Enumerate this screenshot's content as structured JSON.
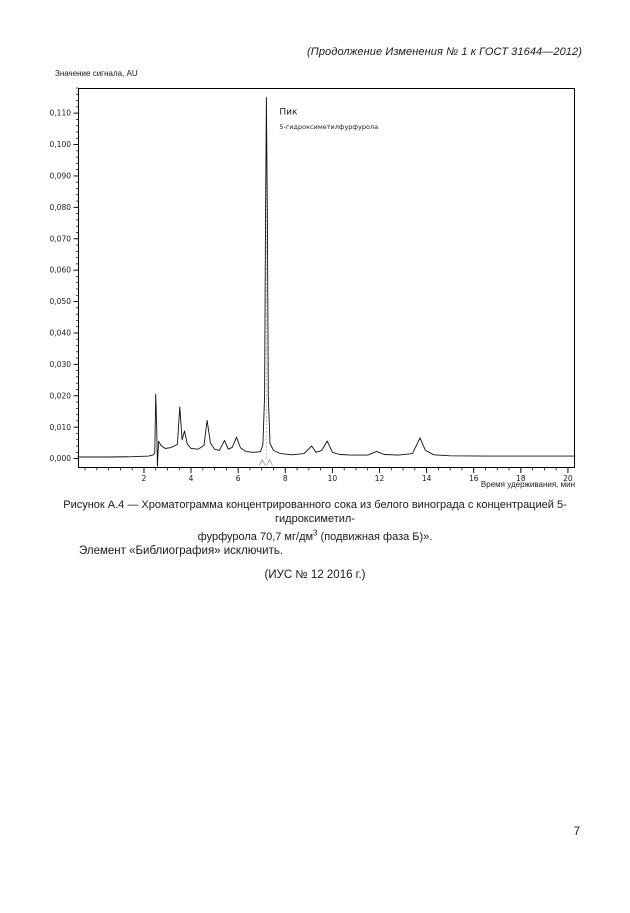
{
  "page": {
    "header": "(Продолжение Изменения № 1 к ГОСТ 31644—2012)",
    "caption_line1": "Рисунок А.4 — Хроматограмма концентрированного сока из белого винограда с концентрацией 5-гидроксиметил-",
    "caption_line2_pre": "фурфурола 70,7 мг/дм",
    "caption_sup": "3",
    "caption_line2_post": " (подвижная фаза Б)».",
    "paragraph": "Элемент «Библиография» исключить.",
    "ius_note": "(ИУС № 12  2016 г.)",
    "page_number": "7"
  },
  "chart_data": {
    "type": "line",
    "title": "",
    "ylabel": "Значение сигнала, AU",
    "xlabel": "Время удерживания, мин",
    "xlim": [
      -0.8,
      20.3
    ],
    "ylim": [
      -0.003,
      0.118
    ],
    "x_ticks": [
      2,
      4,
      6,
      8,
      10,
      12,
      14,
      16,
      18,
      20
    ],
    "x_tick_labels": [
      "2",
      "4",
      "6",
      "8",
      "10",
      "12",
      "14",
      "16",
      "18",
      "20"
    ],
    "x_minor_step": 0.5,
    "y_ticks": [
      0.0,
      0.01,
      0.02,
      0.03,
      0.04,
      0.05,
      0.06,
      0.07,
      0.08,
      0.09,
      0.1,
      0.11
    ],
    "y_tick_labels": [
      "0,000",
      "0,010",
      "0,020",
      "0,030",
      "0,040",
      "0,050",
      "0,060",
      "0,070",
      "0,080",
      "0,090",
      "0,100",
      "0,110"
    ],
    "y_minor_step": 0.002,
    "grid": false,
    "legend": false,
    "annotations": [
      {
        "text": "Пик",
        "x": 7.75,
        "y": 0.1095,
        "size": 9
      },
      {
        "text": "5-гидроксиметилфурфурола",
        "x": 7.75,
        "y": 0.105,
        "size": 6.5
      }
    ],
    "peak_marker_x": 7.2,
    "integration_marks_x": [
      7.02,
      7.33
    ],
    "series": [
      {
        "name": "signal",
        "color": "#111111",
        "points": [
          [
            -0.8,
            0.0005
          ],
          [
            0.5,
            0.0005
          ],
          [
            1.5,
            0.0006
          ],
          [
            2.2,
            0.0008
          ],
          [
            2.4,
            0.0012
          ],
          [
            2.46,
            0.002
          ],
          [
            2.5,
            0.0205
          ],
          [
            2.54,
            0.01
          ],
          [
            2.57,
            -0.0024
          ],
          [
            2.62,
            0.0055
          ],
          [
            2.72,
            0.0042
          ],
          [
            2.9,
            0.0032
          ],
          [
            3.15,
            0.0035
          ],
          [
            3.42,
            0.0045
          ],
          [
            3.52,
            0.0165
          ],
          [
            3.62,
            0.006
          ],
          [
            3.72,
            0.0088
          ],
          [
            3.84,
            0.0046
          ],
          [
            4.0,
            0.0032
          ],
          [
            4.3,
            0.003
          ],
          [
            4.55,
            0.0042
          ],
          [
            4.68,
            0.0122
          ],
          [
            4.82,
            0.005
          ],
          [
            5.0,
            0.003
          ],
          [
            5.2,
            0.0026
          ],
          [
            5.42,
            0.0058
          ],
          [
            5.58,
            0.003
          ],
          [
            5.75,
            0.0036
          ],
          [
            5.93,
            0.0068
          ],
          [
            6.1,
            0.0034
          ],
          [
            6.35,
            0.0022
          ],
          [
            6.65,
            0.002
          ],
          [
            6.95,
            0.0022
          ],
          [
            7.05,
            0.0045
          ],
          [
            7.12,
            0.02
          ],
          [
            7.16,
            0.075
          ],
          [
            7.2,
            0.115
          ],
          [
            7.24,
            0.075
          ],
          [
            7.28,
            0.02
          ],
          [
            7.35,
            0.0048
          ],
          [
            7.5,
            0.0026
          ],
          [
            7.8,
            0.0016
          ],
          [
            8.3,
            0.0012
          ],
          [
            8.8,
            0.0016
          ],
          [
            9.12,
            0.004
          ],
          [
            9.3,
            0.002
          ],
          [
            9.55,
            0.0026
          ],
          [
            9.78,
            0.0056
          ],
          [
            10.0,
            0.002
          ],
          [
            10.3,
            0.0013
          ],
          [
            10.8,
            0.0011
          ],
          [
            11.5,
            0.0011
          ],
          [
            11.88,
            0.0023
          ],
          [
            12.2,
            0.0013
          ],
          [
            12.8,
            0.0011
          ],
          [
            13.4,
            0.0016
          ],
          [
            13.72,
            0.0066
          ],
          [
            13.95,
            0.0026
          ],
          [
            14.3,
            0.0012
          ],
          [
            15.0,
            0.0009
          ],
          [
            16.5,
            0.0008
          ],
          [
            18.0,
            0.0008
          ],
          [
            20.3,
            0.0008
          ]
        ]
      }
    ]
  }
}
